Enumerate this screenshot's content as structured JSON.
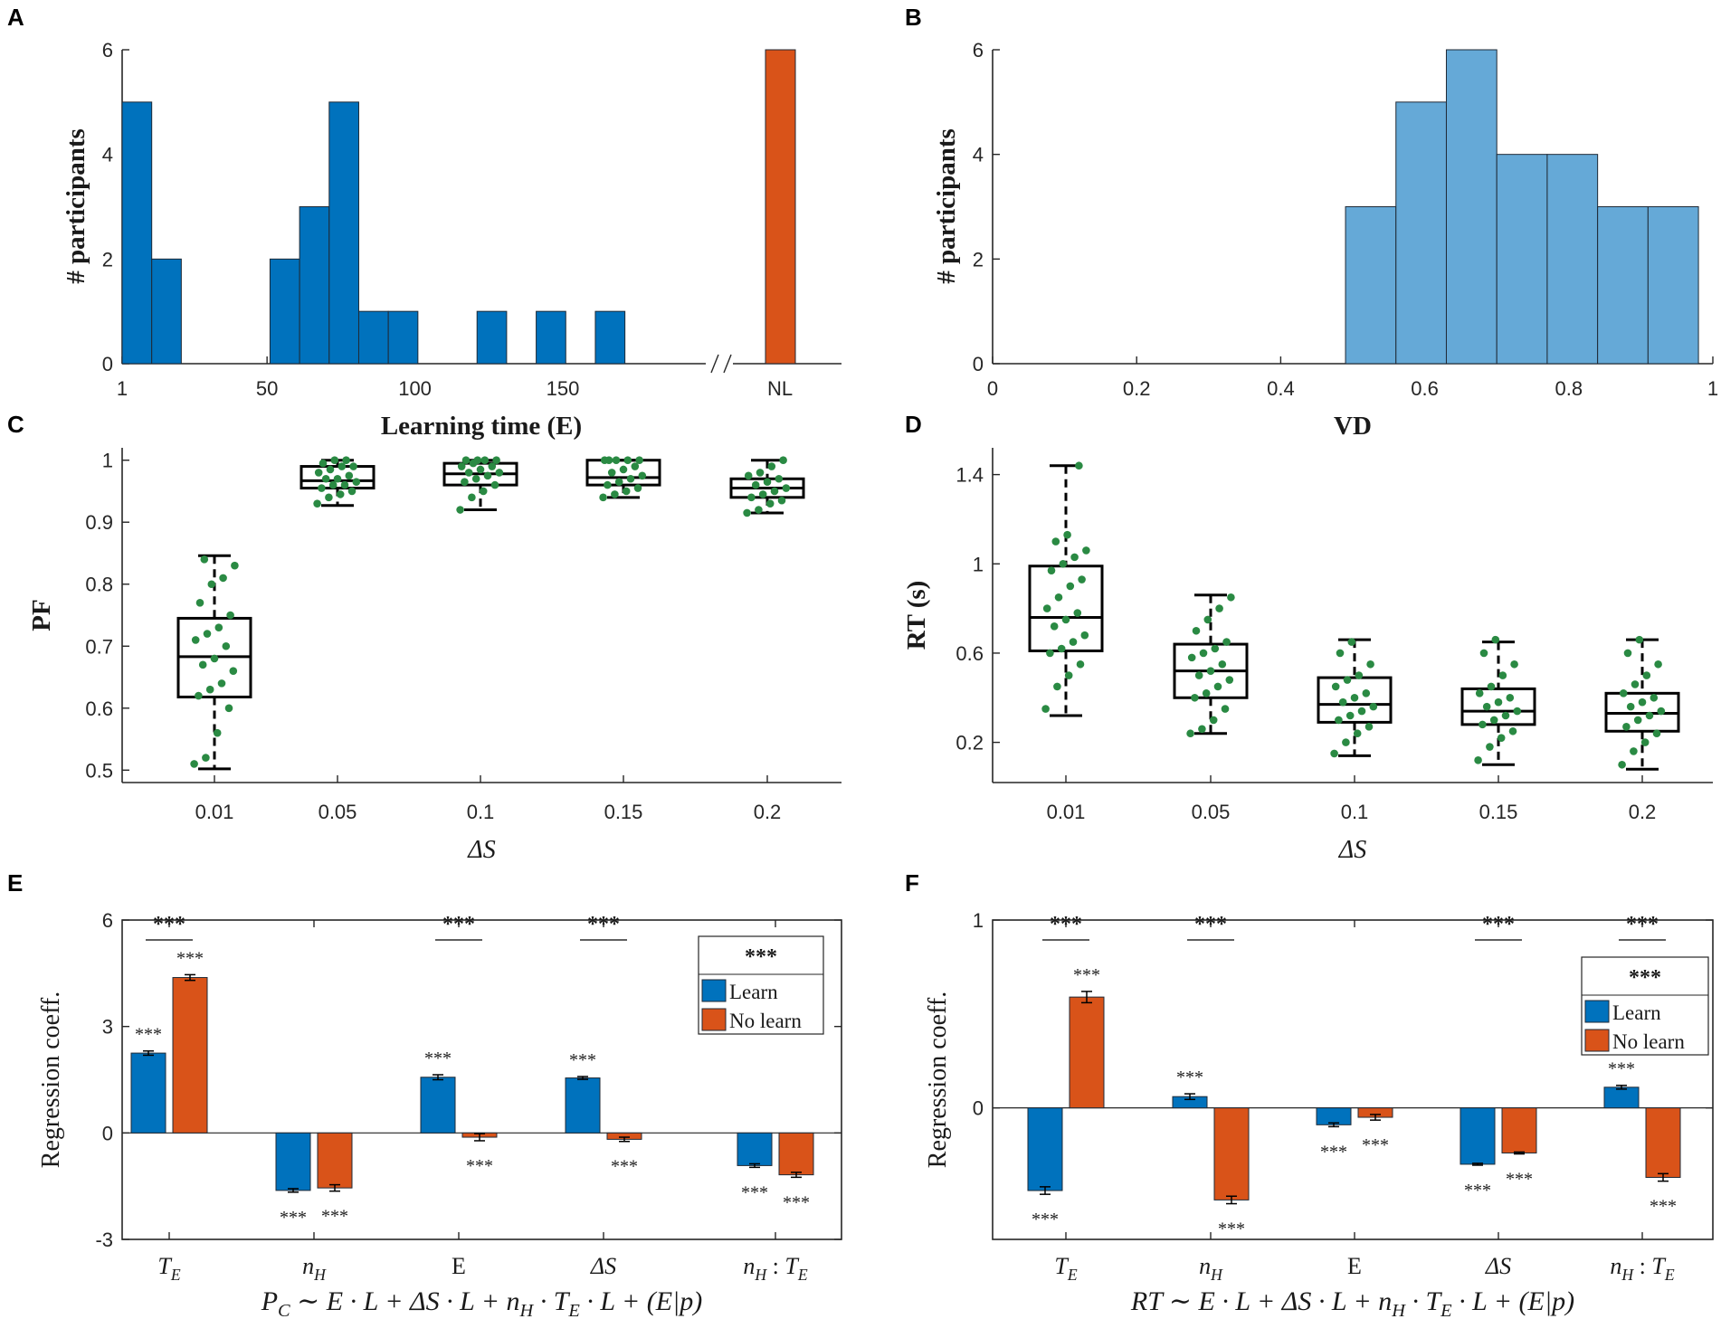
{
  "colors": {
    "learn": "#0072bd",
    "nolearn": "#d95319",
    "vd": "#65a9d7",
    "dots": "#2a8a43",
    "axis": "#262626"
  },
  "panels": {
    "A": "A",
    "B": "B",
    "C": "C",
    "D": "D",
    "E": "E",
    "F": "F"
  },
  "chart_data": [
    {
      "id": "A",
      "type": "bar",
      "title": "",
      "xlabel": "Learning time (E)",
      "ylabel": "# participants",
      "ylim": [
        0,
        6
      ],
      "yticks": [
        0,
        2,
        4,
        6
      ],
      "xticks": [
        "1",
        "50",
        "100",
        "150",
        "NL"
      ],
      "axis_break_label": "/ /",
      "bin_width": 10,
      "series": [
        {
          "name": "Learn",
          "bin_starts": [
            1,
            11,
            51,
            61,
            71,
            81,
            91,
            121,
            141,
            161
          ],
          "values": [
            5,
            2,
            2,
            3,
            5,
            1,
            1,
            1,
            1,
            1
          ]
        },
        {
          "name": "No learn",
          "categories": [
            "NL"
          ],
          "values": [
            6
          ]
        }
      ]
    },
    {
      "id": "B",
      "type": "bar",
      "xlabel": "VD",
      "ylabel": "# participants",
      "xlim": [
        0,
        1
      ],
      "ylim": [
        0,
        6
      ],
      "xticks": [
        "0",
        "0.2",
        "0.4",
        "0.6",
        "0.8",
        "1"
      ],
      "yticks": [
        0,
        2,
        4,
        6
      ],
      "bin_edges": [
        0.49,
        0.56,
        0.63,
        0.7,
        0.77,
        0.84,
        0.91,
        0.98
      ],
      "values": [
        3,
        5,
        6,
        4,
        4,
        3,
        3
      ]
    },
    {
      "id": "C",
      "type": "box",
      "xlabel": "ΔS",
      "ylabel": "PF",
      "ylim": [
        0.48,
        1.02
      ],
      "yticks": [
        "0.5",
        "0.6",
        "0.7",
        "0.8",
        "0.9",
        "1"
      ],
      "categories": [
        "0.01",
        "0.05",
        "0.1",
        "0.15",
        "0.2"
      ],
      "boxes": [
        {
          "min": 0.502,
          "q1": 0.618,
          "median": 0.683,
          "q3": 0.745,
          "max": 0.846
        },
        {
          "min": 0.927,
          "q1": 0.955,
          "median": 0.967,
          "q3": 0.99,
          "max": 1.0
        },
        {
          "min": 0.92,
          "q1": 0.96,
          "median": 0.978,
          "q3": 0.995,
          "max": 1.0
        },
        {
          "min": 0.94,
          "q1": 0.96,
          "median": 0.972,
          "q3": 1.0,
          "max": 1.0
        },
        {
          "min": 0.915,
          "q1": 0.94,
          "median": 0.955,
          "q3": 0.97,
          "max": 1.0
        }
      ],
      "points": [
        [
          0.51,
          0.52,
          0.56,
          0.6,
          0.62,
          0.63,
          0.64,
          0.66,
          0.67,
          0.68,
          0.7,
          0.71,
          0.72,
          0.73,
          0.75,
          0.77,
          0.8,
          0.81,
          0.83,
          0.84
        ],
        [
          0.93,
          0.94,
          0.945,
          0.95,
          0.955,
          0.96,
          0.96,
          0.965,
          0.97,
          0.97,
          0.975,
          0.98,
          0.985,
          0.99,
          0.99,
          0.995,
          1.0,
          1.0
        ],
        [
          0.92,
          0.94,
          0.95,
          0.96,
          0.965,
          0.97,
          0.975,
          0.98,
          0.98,
          0.985,
          0.99,
          0.99,
          0.995,
          1.0,
          1.0,
          1.0,
          1.0
        ],
        [
          0.94,
          0.945,
          0.95,
          0.955,
          0.96,
          0.965,
          0.97,
          0.975,
          0.98,
          0.985,
          0.99,
          1.0,
          1.0,
          1.0,
          1.0,
          1.0
        ],
        [
          0.915,
          0.92,
          0.93,
          0.935,
          0.94,
          0.945,
          0.95,
          0.955,
          0.96,
          0.965,
          0.97,
          0.975,
          0.98,
          0.99,
          1.0
        ]
      ]
    },
    {
      "id": "D",
      "type": "box",
      "xlabel": "ΔS",
      "ylabel": "RT (s)",
      "ylim": [
        0.02,
        1.52
      ],
      "yticks": [
        "0.2",
        "0.6",
        "1",
        "1.4"
      ],
      "categories": [
        "0.01",
        "0.05",
        "0.1",
        "0.15",
        "0.2"
      ],
      "boxes": [
        {
          "min": 0.32,
          "q1": 0.61,
          "median": 0.76,
          "q3": 0.99,
          "max": 1.44
        },
        {
          "min": 0.24,
          "q1": 0.4,
          "median": 0.52,
          "q3": 0.64,
          "max": 0.86
        },
        {
          "min": 0.14,
          "q1": 0.29,
          "median": 0.37,
          "q3": 0.49,
          "max": 0.66
        },
        {
          "min": 0.1,
          "q1": 0.28,
          "median": 0.34,
          "q3": 0.44,
          "max": 0.65
        },
        {
          "min": 0.08,
          "q1": 0.25,
          "median": 0.33,
          "q3": 0.42,
          "max": 0.66
        }
      ],
      "points": [
        [
          0.35,
          0.45,
          0.5,
          0.55,
          0.6,
          0.62,
          0.65,
          0.68,
          0.72,
          0.75,
          0.78,
          0.8,
          0.85,
          0.9,
          0.93,
          0.97,
          1.0,
          1.03,
          1.06,
          1.1,
          1.13,
          1.44
        ],
        [
          0.24,
          0.26,
          0.3,
          0.35,
          0.4,
          0.42,
          0.45,
          0.48,
          0.5,
          0.52,
          0.55,
          0.58,
          0.6,
          0.62,
          0.65,
          0.7,
          0.75,
          0.8,
          0.85
        ],
        [
          0.15,
          0.2,
          0.24,
          0.27,
          0.3,
          0.32,
          0.34,
          0.36,
          0.38,
          0.4,
          0.42,
          0.45,
          0.48,
          0.5,
          0.55,
          0.6,
          0.65
        ],
        [
          0.12,
          0.18,
          0.22,
          0.25,
          0.28,
          0.3,
          0.32,
          0.34,
          0.36,
          0.38,
          0.4,
          0.42,
          0.45,
          0.5,
          0.55,
          0.6,
          0.66
        ],
        [
          0.1,
          0.16,
          0.2,
          0.24,
          0.27,
          0.3,
          0.32,
          0.34,
          0.36,
          0.38,
          0.4,
          0.42,
          0.46,
          0.5,
          0.55,
          0.6,
          0.66
        ]
      ]
    },
    {
      "id": "E",
      "type": "bar",
      "ylabel": "Regression coeff.",
      "ylim": [
        -3,
        6
      ],
      "yticks": [
        "-3",
        "0",
        "3",
        "6"
      ],
      "categories": [
        "T_E",
        "n_H",
        "E",
        "ΔS",
        "n_H : T_E"
      ],
      "series": [
        {
          "name": "Learn",
          "values": [
            2.25,
            -1.62,
            1.57,
            1.55,
            -0.92
          ],
          "errors": [
            0.06,
            0.05,
            0.07,
            0.04,
            0.05
          ]
        },
        {
          "name": "No learn",
          "values": [
            4.38,
            -1.55,
            -0.12,
            -0.18,
            -1.18
          ],
          "errors": [
            0.08,
            0.09,
            0.1,
            0.06,
            0.07
          ]
        }
      ],
      "stars": {
        "bar_sig": "***",
        "pair_sig": "***",
        "legend_header": "***"
      },
      "pair_sig_categories": [
        "T_E",
        "E",
        "ΔS"
      ],
      "formula": "P_C ∼ E · L + ΔS · L + n_H · T_E · L + (E|p)"
    },
    {
      "id": "F",
      "type": "bar",
      "ylabel": "Regression coeff.",
      "ylim": [
        -0.7,
        1.0
      ],
      "yticks": [
        "0",
        "1"
      ],
      "categories": [
        "T_E",
        "n_H",
        "E",
        "ΔS",
        "n_H : T_E"
      ],
      "series": [
        {
          "name": "Learn",
          "values": [
            -0.44,
            0.06,
            -0.09,
            -0.3,
            0.11
          ],
          "errors": [
            0.02,
            0.015,
            0.01,
            0.005,
            0.01
          ]
        },
        {
          "name": "No learn",
          "values": [
            0.59,
            -0.49,
            -0.05,
            -0.24,
            -0.37
          ],
          "errors": [
            0.03,
            0.02,
            0.015,
            0.005,
            0.02
          ]
        }
      ],
      "stars": {
        "bar_sig": "***",
        "pair_sig": "***",
        "legend_header": "***"
      },
      "pair_sig_categories": [
        "T_E",
        "n_H",
        "ΔS",
        "n_H : T_E"
      ],
      "formula": "RT ∼ E · L + ΔS · L + n_H · T_E · L + (E|p)"
    }
  ],
  "legend": {
    "learn": "Learn",
    "nolearn": "No learn",
    "header": "***"
  },
  "labels": {
    "A_x": "Learning time (E)",
    "A_y": "# participants",
    "B_x": "VD",
    "B_y": "# participants",
    "C_x": "ΔS",
    "C_y": "PF",
    "D_x": "ΔS",
    "D_y": "RT (s)",
    "E_y": "Regression coeff.",
    "F_y": "Regression coeff.",
    "E_formula": "P_C ∼ E · L + ΔS · L + n_H · T_E · L + (E|p)",
    "F_formula": "RT ∼ E · L + ΔS · L + n_H · T_E · L + (E|p)"
  }
}
